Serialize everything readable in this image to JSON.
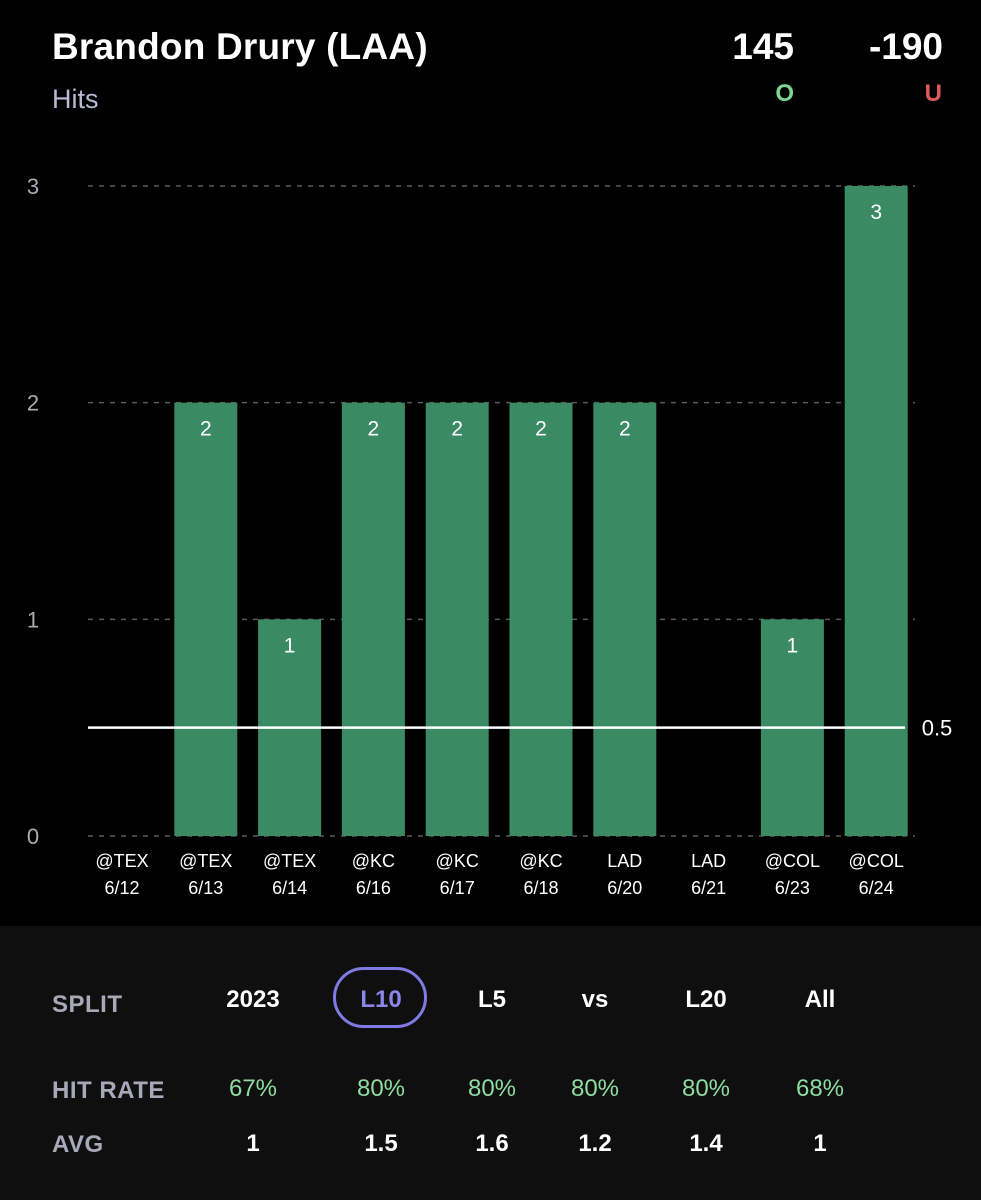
{
  "header": {
    "player": "Brandon Drury (LAA)",
    "stat": "Hits",
    "over_odds": "145",
    "under_odds": "-190",
    "over_label": "O",
    "under_label": "U"
  },
  "colors": {
    "bar": "#3a8a64",
    "over": "#7fd491",
    "under": "#e05a5a",
    "accent": "#7f7be3",
    "hit_rate": "#8fdca1"
  },
  "chart_data": {
    "type": "bar",
    "categories": [
      [
        "@TEX",
        "6/12"
      ],
      [
        "@TEX",
        "6/13"
      ],
      [
        "@TEX",
        "6/14"
      ],
      [
        "@KC",
        "6/16"
      ],
      [
        "@KC",
        "6/17"
      ],
      [
        "@KC",
        "6/18"
      ],
      [
        "LAD",
        "6/20"
      ],
      [
        "LAD",
        "6/21"
      ],
      [
        "@COL",
        "6/23"
      ],
      [
        "@COL",
        "6/24"
      ]
    ],
    "values": [
      0,
      2,
      1,
      2,
      2,
      2,
      2,
      0,
      1,
      3
    ],
    "ylim": [
      0,
      3
    ],
    "yticks": [
      0,
      1,
      2,
      3
    ],
    "line": {
      "value": 0.5,
      "label": "0.5"
    },
    "grid": true
  },
  "splits": {
    "label": "SPLIT",
    "options": [
      "2023",
      "L10",
      "L5",
      "vs",
      "L20",
      "All"
    ],
    "active": "L10",
    "hit_rate_label": "HIT RATE",
    "hit_rates": [
      "67%",
      "80%",
      "80%",
      "80%",
      "80%",
      "68%"
    ],
    "avg_label": "AVG",
    "avgs": [
      "1",
      "1.5",
      "1.6",
      "1.2",
      "1.4",
      "1"
    ]
  }
}
